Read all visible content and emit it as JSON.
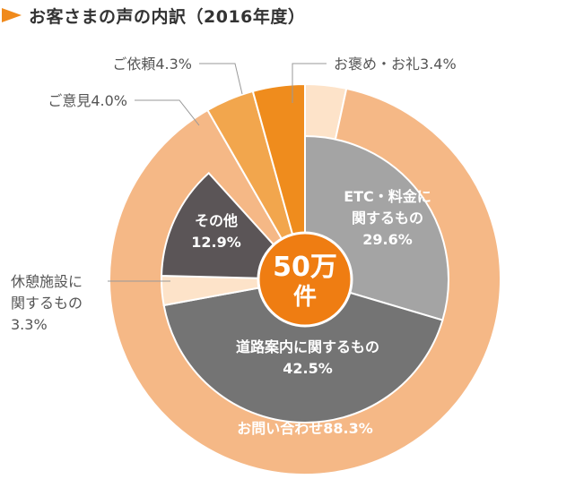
{
  "title": "お客さまの声の内訳（2016年度）",
  "colors": {
    "title_arrow": "#f08a1c",
    "inquiry": "#f5b886",
    "praise": "#fde3c9",
    "request": "#ef8c1d",
    "opinion": "#f2a64d",
    "rest": "#fde3c9",
    "etc": "#a4a4a4",
    "road": "#747474",
    "other": "#5b5557",
    "center": "#ef7d12"
  },
  "chart_data": {
    "type": "pie",
    "center_label": [
      "50万",
      "件"
    ],
    "outer_ring": [
      {
        "key": "praise",
        "label": "お褒め・お礼3.4%",
        "value": 3.4
      },
      {
        "key": "inquiry",
        "label": "お問い合わせ88.3%",
        "value": 88.3
      },
      {
        "key": "opinion",
        "label": "ご意見4.0%",
        "value": 4.0
      },
      {
        "key": "request",
        "label": "ご依頼4.3%",
        "value": 4.3
      }
    ],
    "inner_ring": [
      {
        "key": "etc",
        "label": [
          "ETC・料金に",
          "関するもの",
          "29.6%"
        ],
        "value": 29.6
      },
      {
        "key": "road",
        "label": [
          "道路案内に関するもの",
          "42.5%"
        ],
        "value": 42.5
      },
      {
        "key": "rest",
        "label": [
          "休憩施設に",
          "関するもの",
          "3.3%"
        ],
        "value": 3.3
      },
      {
        "key": "other",
        "label": [
          "その他",
          "12.9%"
        ],
        "value": 12.9
      }
    ]
  }
}
